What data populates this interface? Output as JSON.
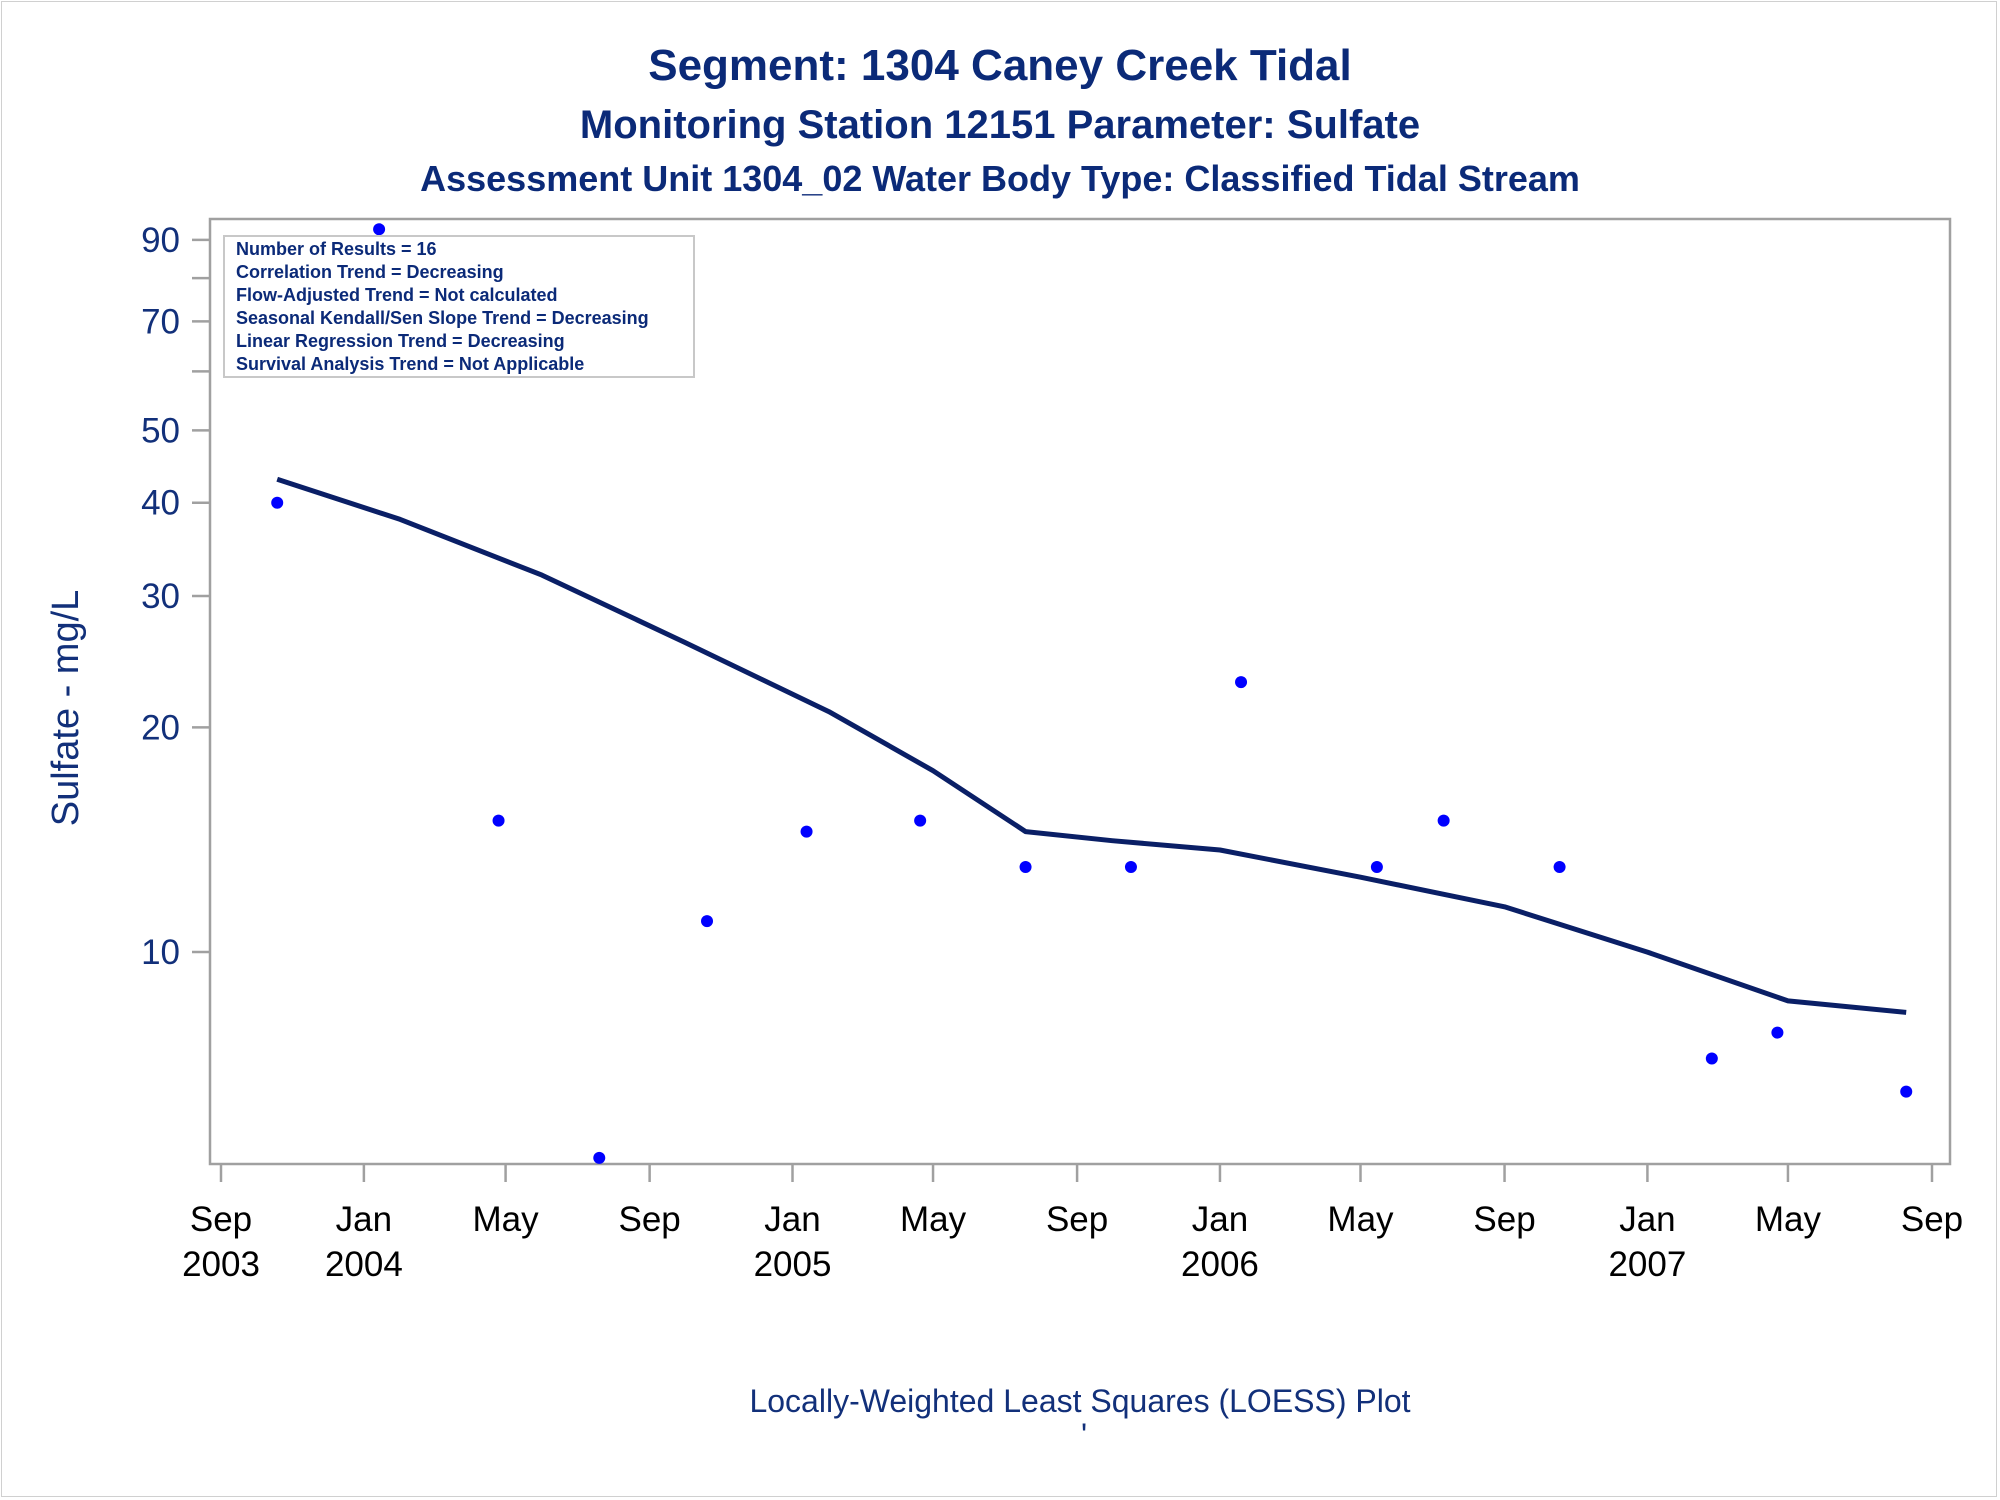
{
  "titles": {
    "line1": "Segment: 1304  Caney Creek Tidal",
    "line2": "Monitoring Station 12151 Parameter: Sulfate",
    "line3": "Assessment Unit 1304_02   Water Body Type: Classified Tidal Stream"
  },
  "stats_box": [
    "Number of Results = 16",
    "Correlation Trend = Decreasing",
    "Flow-Adjusted Trend = Not calculated",
    "Seasonal Kendall/Sen Slope Trend = Decreasing",
    "Linear Regression Trend = Decreasing",
    "Survival Analysis Trend = Not Applicable"
  ],
  "footnote": "Locally-Weighted Least Squares (LOESS) Plot",
  "footnote_mark": "'",
  "colors": {
    "points": "#0000ff",
    "loess_line": "#0a1f66",
    "text": "#0b2a78",
    "axis": "#a0a0a0"
  },
  "chart_data": {
    "type": "scatter",
    "ylabel": "Sulfate - mg/L",
    "xlabel": "",
    "y_scale": "log",
    "ylim": [
      5.2,
      96
    ],
    "xlim": [
      "2003-09-01",
      "2007-09-01"
    ],
    "y_ticks": [
      {
        "value": 10,
        "label": "10"
      },
      {
        "value": 20,
        "label": "20"
      },
      {
        "value": 30,
        "label": "30"
      },
      {
        "value": 40,
        "label": "40"
      },
      {
        "value": 50,
        "label": "50"
      },
      {
        "value": 60,
        "label": ""
      },
      {
        "value": 70,
        "label": "70"
      },
      {
        "value": 80,
        "label": ""
      },
      {
        "value": 90,
        "label": "90"
      }
    ],
    "x_ticks": [
      {
        "date": "2003-09-01",
        "label": "Sep",
        "year": "2003"
      },
      {
        "date": "2004-01-01",
        "label": "Jan",
        "year": "2004"
      },
      {
        "date": "2004-05-01",
        "label": "May",
        "year": ""
      },
      {
        "date": "2004-09-01",
        "label": "Sep",
        "year": ""
      },
      {
        "date": "2005-01-01",
        "label": "Jan",
        "year": "2005"
      },
      {
        "date": "2005-05-01",
        "label": "May",
        "year": ""
      },
      {
        "date": "2005-09-01",
        "label": "Sep",
        "year": ""
      },
      {
        "date": "2006-01-01",
        "label": "Jan",
        "year": "2006"
      },
      {
        "date": "2006-05-01",
        "label": "May",
        "year": ""
      },
      {
        "date": "2006-09-01",
        "label": "Sep",
        "year": ""
      },
      {
        "date": "2007-01-01",
        "label": "Jan",
        "year": "2007"
      },
      {
        "date": "2007-05-01",
        "label": "May",
        "year": ""
      },
      {
        "date": "2007-09-01",
        "label": "Sep",
        "year": ""
      }
    ],
    "points": [
      {
        "x": "2003-10-19",
        "y": 40
      },
      {
        "x": "2004-01-14",
        "y": 93
      },
      {
        "x": "2004-04-25",
        "y": 15
      },
      {
        "x": "2004-07-20",
        "y": 5.3
      },
      {
        "x": "2004-10-20",
        "y": 11
      },
      {
        "x": "2005-01-13",
        "y": 14.5
      },
      {
        "x": "2005-04-20",
        "y": 15
      },
      {
        "x": "2005-07-19",
        "y": 13
      },
      {
        "x": "2005-10-17",
        "y": 13
      },
      {
        "x": "2006-01-19",
        "y": 23
      },
      {
        "x": "2006-05-15",
        "y": 13
      },
      {
        "x": "2006-07-11",
        "y": 15
      },
      {
        "x": "2006-10-18",
        "y": 13
      },
      {
        "x": "2007-02-25",
        "y": 7.2
      },
      {
        "x": "2007-04-22",
        "y": 7.8
      },
      {
        "x": "2007-08-10",
        "y": 6.5
      }
    ],
    "loess": [
      {
        "x": "2003-10-19",
        "y": 43
      },
      {
        "x": "2004-02-01",
        "y": 38
      },
      {
        "x": "2004-06-01",
        "y": 32
      },
      {
        "x": "2004-10-01",
        "y": 26
      },
      {
        "x": "2005-02-01",
        "y": 21
      },
      {
        "x": "2005-05-01",
        "y": 17.5
      },
      {
        "x": "2005-07-19",
        "y": 14.5
      },
      {
        "x": "2005-10-01",
        "y": 14.1
      },
      {
        "x": "2006-01-01",
        "y": 13.7
      },
      {
        "x": "2006-05-01",
        "y": 12.6
      },
      {
        "x": "2006-09-01",
        "y": 11.5
      },
      {
        "x": "2007-01-01",
        "y": 10.0
      },
      {
        "x": "2007-05-01",
        "y": 8.6
      },
      {
        "x": "2007-08-10",
        "y": 8.3
      }
    ]
  }
}
